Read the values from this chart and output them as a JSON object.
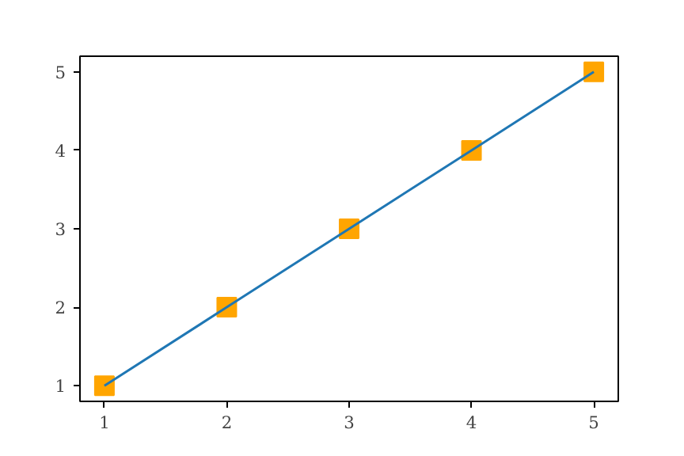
{
  "chart_data": {
    "type": "line",
    "x": [
      1,
      2,
      3,
      4,
      5
    ],
    "series": [
      {
        "type": "scatter",
        "color": "#ffa500",
        "marker": "square",
        "values": [
          1,
          2,
          3,
          4,
          5
        ]
      },
      {
        "color": "#1f77b4",
        "marker": "none",
        "line_style": "solid",
        "values": [
          1,
          2,
          3,
          4,
          5
        ]
      }
    ],
    "xlim": [
      0.8,
      5.2
    ],
    "ylim": [
      0.8,
      5.2
    ],
    "xticks": [
      1,
      2,
      3,
      4,
      5
    ],
    "yticks": [
      1,
      2,
      3,
      4,
      5
    ],
    "grid": false
  }
}
